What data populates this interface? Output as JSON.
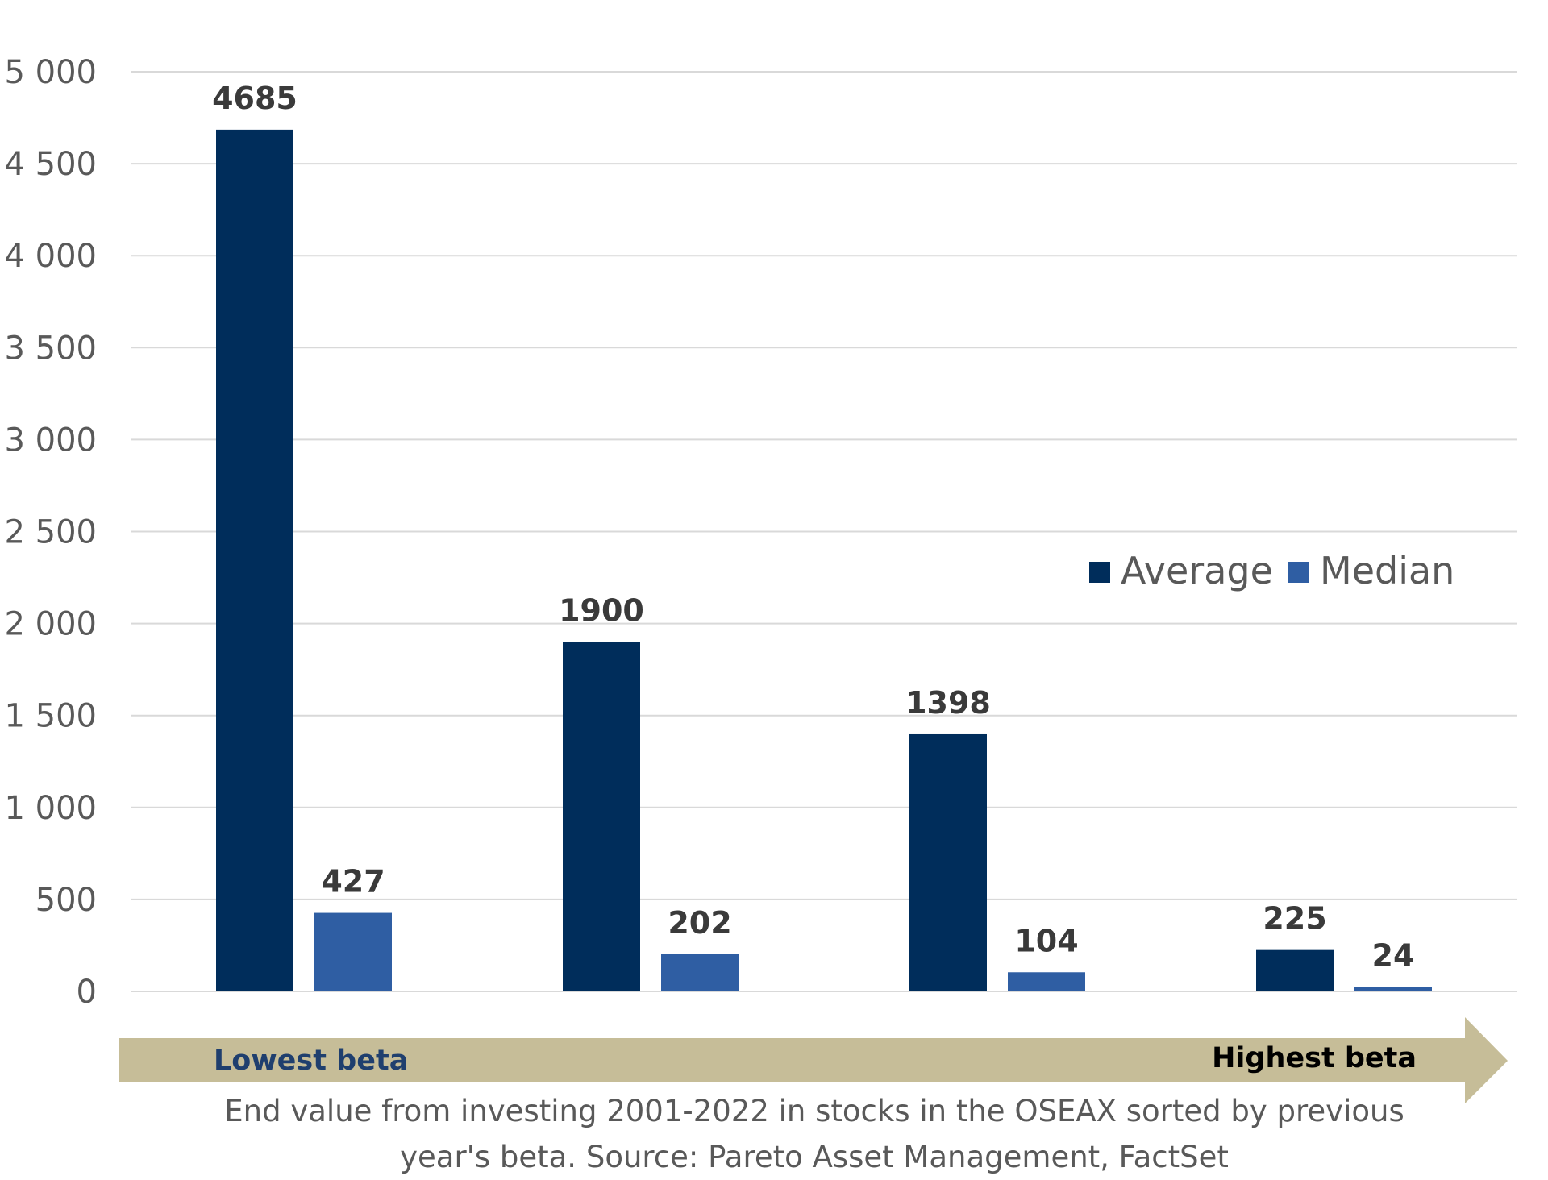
{
  "chart_data": {
    "type": "bar",
    "categories": [
      "",
      "",
      "",
      ""
    ],
    "series": [
      {
        "name": "Average",
        "values": [
          4685,
          1900,
          1398,
          225
        ]
      },
      {
        "name": "Median",
        "values": [
          427,
          202,
          104,
          24
        ]
      }
    ],
    "data_labels": [
      [
        "4685",
        "1900",
        "1398",
        "225"
      ],
      [
        "427",
        "202",
        "104",
        "24"
      ]
    ],
    "ylim": [
      0,
      5000
    ],
    "yticks": [
      0,
      500,
      1000,
      1500,
      2000,
      2500,
      3000,
      3500,
      4000,
      4500,
      5000
    ],
    "ytick_labels": [
      "0",
      "500",
      "1 000",
      "1 500",
      "2 000",
      "2 500",
      "3 000",
      "3 500",
      "4 000",
      "4 500",
      "5 000"
    ],
    "grid": true,
    "legend_position": "right",
    "colors": {
      "Average": "#002d5b",
      "Median": "#2f5ea3",
      "grid": "#d9d9d9",
      "arrow": "#c6bd98"
    },
    "arrow": {
      "left_label": "Lowest beta",
      "right_label": "Highest beta"
    },
    "caption": [
      "End value from investing 2001-2022 in stocks in the OSEAX sorted by previous",
      "year's beta. Source: Pareto Asset Management, FactSet"
    ]
  }
}
